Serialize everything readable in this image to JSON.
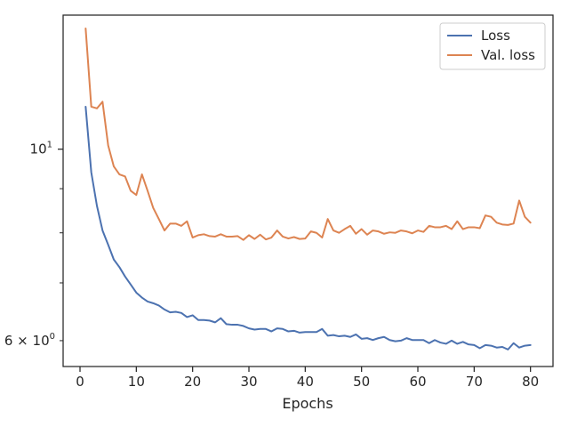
{
  "chart_data": {
    "type": "line",
    "title": "",
    "xlabel": "Epochs",
    "ylabel": "",
    "yscale": "log",
    "xlim": [
      -3.0,
      84.0
    ],
    "ylim": [
      5.6,
      14.3
    ],
    "x_ticks": [
      0,
      10,
      20,
      30,
      40,
      50,
      60,
      70,
      80
    ],
    "x_tick_labels": [
      "0",
      "10",
      "20",
      "30",
      "40",
      "50",
      "60",
      "70",
      "80"
    ],
    "y_major_ticks": [
      10
    ],
    "y_major_tick_labels": [
      "10",
      "1"
    ],
    "y_minor_ticks": [
      6,
      7,
      8,
      9
    ],
    "y_minor_tick_labels": [
      {
        "value": 6,
        "coef": "6 × 10",
        "exp": "0"
      }
    ],
    "grid": false,
    "legend_position": "top-right",
    "x": [
      1,
      2,
      3,
      4,
      5,
      6,
      7,
      8,
      9,
      10,
      11,
      12,
      13,
      14,
      15,
      16,
      17,
      18,
      19,
      20,
      21,
      22,
      23,
      24,
      25,
      26,
      27,
      28,
      29,
      30,
      31,
      32,
      33,
      34,
      35,
      36,
      37,
      38,
      39,
      40,
      41,
      42,
      43,
      44,
      45,
      46,
      47,
      48,
      49,
      50,
      51,
      52,
      53,
      54,
      55,
      56,
      57,
      58,
      59,
      60,
      61,
      62,
      63,
      64,
      65,
      66,
      67,
      68,
      69,
      70,
      71,
      72,
      73,
      74,
      75,
      76,
      77,
      78,
      79,
      80
    ],
    "series": [
      {
        "name": "Loss",
        "color": "#4c72b0",
        "values": [
          11.2,
          9.4,
          8.6,
          8.05,
          7.75,
          7.45,
          7.3,
          7.12,
          6.97,
          6.82,
          6.73,
          6.66,
          6.63,
          6.59,
          6.52,
          6.47,
          6.48,
          6.46,
          6.39,
          6.42,
          6.34,
          6.34,
          6.33,
          6.3,
          6.37,
          6.27,
          6.26,
          6.26,
          6.24,
          6.2,
          6.18,
          6.19,
          6.19,
          6.15,
          6.2,
          6.19,
          6.15,
          6.16,
          6.13,
          6.14,
          6.14,
          6.14,
          6.19,
          6.08,
          6.09,
          6.07,
          6.08,
          6.06,
          6.1,
          6.03,
          6.04,
          6.01,
          6.04,
          6.06,
          6.01,
          5.99,
          6.0,
          6.04,
          6.01,
          6.01,
          6.01,
          5.96,
          6.01,
          5.97,
          5.95,
          6.0,
          5.95,
          5.98,
          5.94,
          5.93,
          5.88,
          5.93,
          5.92,
          5.89,
          5.9,
          5.86,
          5.96,
          5.89,
          5.92,
          5.93
        ]
      },
      {
        "name": "Val. loss",
        "color": "#dd8452",
        "values": [
          13.8,
          11.2,
          11.15,
          11.35,
          10.1,
          9.55,
          9.35,
          9.3,
          8.95,
          8.85,
          9.35,
          8.95,
          8.55,
          8.3,
          8.05,
          8.2,
          8.2,
          8.15,
          8.25,
          7.9,
          7.95,
          7.97,
          7.93,
          7.92,
          7.97,
          7.92,
          7.92,
          7.93,
          7.85,
          7.95,
          7.87,
          7.96,
          7.86,
          7.9,
          8.05,
          7.92,
          7.88,
          7.91,
          7.87,
          7.88,
          8.03,
          8.0,
          7.9,
          8.3,
          8.05,
          8.0,
          8.08,
          8.15,
          7.98,
          8.08,
          7.96,
          8.05,
          8.03,
          7.98,
          8.01,
          8.0,
          8.05,
          8.03,
          7.99,
          8.05,
          8.02,
          8.15,
          8.12,
          8.12,
          8.15,
          8.08,
          8.25,
          8.08,
          8.12,
          8.12,
          8.1,
          8.38,
          8.35,
          8.22,
          8.18,
          8.17,
          8.2,
          8.72,
          8.35,
          8.22
        ]
      }
    ]
  }
}
